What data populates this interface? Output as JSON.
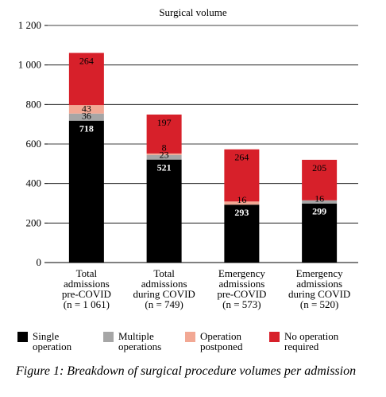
{
  "chart_data": {
    "type": "bar",
    "stacked": true,
    "title": "Surgical volume",
    "xlabel": "",
    "ylabel": "",
    "ylim": [
      0,
      1200
    ],
    "yticks": [
      0,
      200,
      400,
      600,
      800,
      1000,
      1200
    ],
    "ytick_labels": [
      "0",
      "200",
      "400",
      "600",
      "800",
      "1 000",
      "1 200"
    ],
    "grid": "horizontal",
    "categories": [
      [
        "Total",
        "admissions",
        "pre-COVID",
        "(n = 1 061)"
      ],
      [
        "Total",
        "admissions",
        "during COVID",
        "(n = 749)"
      ],
      [
        "Emergency",
        "admissions",
        "pre-COVID",
        "(n = 573)"
      ],
      [
        "Emergency",
        "admissions",
        "during COVID",
        "(n = 520)"
      ]
    ],
    "series": [
      {
        "name": "Single operation",
        "color": "#000000",
        "label_color": "#ffffff",
        "values": [
          718,
          521,
          293,
          299
        ]
      },
      {
        "name": "Multiple operations",
        "color": "#a6a6a6",
        "label_color": "#000000",
        "values": [
          36,
          23,
          null,
          16
        ]
      },
      {
        "name": "Operation postponed",
        "color": "#f2a894",
        "label_color": "#000000",
        "values": [
          43,
          8,
          16,
          null
        ]
      },
      {
        "name": "No operation required",
        "color": "#d7202a",
        "label_color": "#000000",
        "values": [
          264,
          197,
          264,
          205
        ]
      }
    ],
    "legend_position": "bottom"
  },
  "legend": [
    {
      "label": "Single operation",
      "color": "#000000"
    },
    {
      "label": "Multiple operations",
      "color": "#a6a6a6"
    },
    {
      "label": "Operation postponed",
      "color": "#f2a894"
    },
    {
      "label": "No operation required",
      "color": "#d7202a"
    }
  ],
  "caption": "Figure 1: Breakdown of surgical procedure volumes per admission"
}
